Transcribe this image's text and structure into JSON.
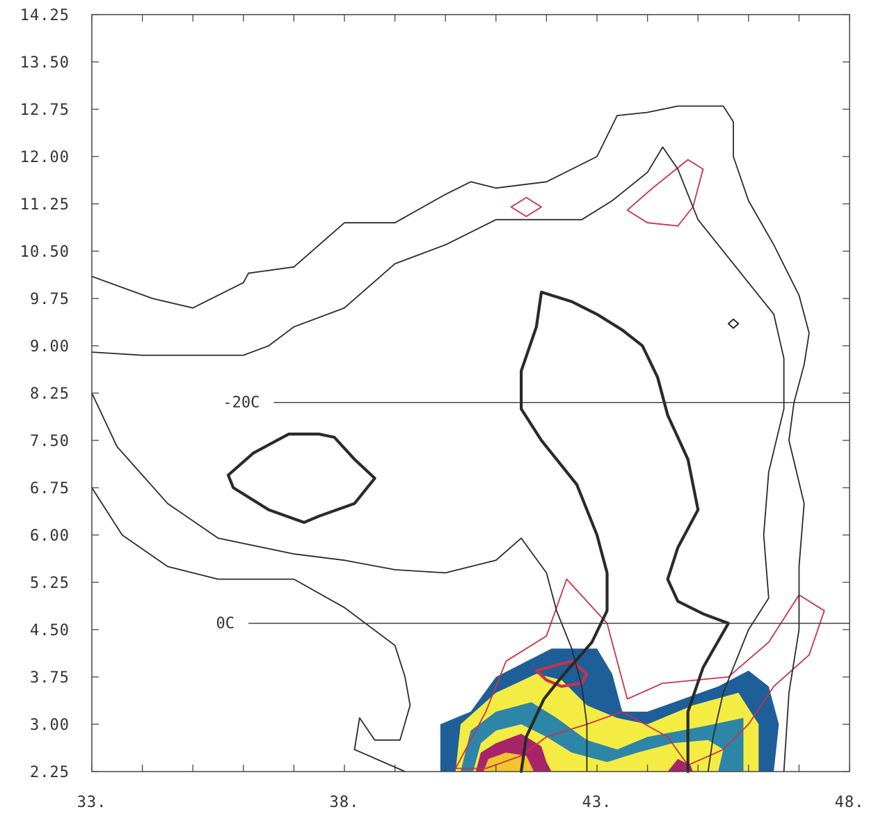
{
  "chart_data": {
    "type": "contour",
    "xlim": [
      33,
      48
    ],
    "ylim": [
      2.25,
      14.25
    ],
    "x_ticks": [
      33,
      38,
      43,
      48
    ],
    "x_tick_labels": [
      "33.",
      "38.",
      "43.",
      "48."
    ],
    "y_ticks": [
      2.25,
      3.0,
      3.75,
      4.5,
      5.25,
      6.0,
      6.75,
      7.5,
      8.25,
      9.0,
      9.75,
      10.5,
      11.25,
      12.0,
      12.75,
      13.5,
      14.25
    ],
    "y_tick_labels": [
      "2.25",
      "3.00",
      "3.75",
      "4.50",
      "5.25",
      "6.00",
      "6.75",
      "7.50",
      "8.25",
      "9.00",
      "9.75",
      "10.50",
      "11.25",
      "12.00",
      "12.75",
      "13.50",
      "14.25"
    ],
    "reference_lines": [
      {
        "label": "-20C",
        "y": 8.1,
        "x_start": 36.6,
        "x_end": 48
      },
      {
        "label": "0C",
        "y": 4.6,
        "x_start": 36.1,
        "x_end": 48
      }
    ],
    "colors": {
      "black_contour": "#2a2a2a",
      "red_contour": "#c8324a",
      "fill_dark_blue": "#1e5f99",
      "fill_teal": "#2d86a8",
      "fill_yellow": "#f4ec42",
      "fill_magenta": "#a8246a",
      "fill_gold": "#f3c52c"
    },
    "black_contours": [
      {
        "w": 1.8,
        "pts": [
          [
            33,
            10.1
          ],
          [
            34.2,
            9.75
          ],
          [
            35,
            9.6
          ],
          [
            36,
            10.0
          ],
          [
            36.1,
            10.15
          ],
          [
            37,
            10.25
          ],
          [
            38,
            10.95
          ],
          [
            39,
            10.95
          ],
          [
            40,
            11.4
          ],
          [
            40.5,
            11.6
          ],
          [
            41,
            11.5
          ],
          [
            42,
            11.6
          ],
          [
            43,
            12.0
          ],
          [
            43.4,
            12.65
          ],
          [
            44,
            12.7
          ],
          [
            44.6,
            12.8
          ],
          [
            45.5,
            12.8
          ],
          [
            45.7,
            12.55
          ],
          [
            45.7,
            12.0
          ],
          [
            46,
            11.3
          ],
          [
            46.5,
            10.6
          ],
          [
            47,
            9.8
          ],
          [
            47.2,
            9.2
          ],
          [
            47.1,
            8.7
          ],
          [
            46.9,
            8.1
          ],
          [
            46.8,
            7.5
          ],
          [
            47.1,
            6.5
          ],
          [
            47.0,
            5.5
          ],
          [
            47.0,
            4.5
          ],
          [
            46.8,
            3.5
          ],
          [
            46.7,
            2.25
          ]
        ]
      },
      {
        "w": 1.8,
        "pts": [
          [
            33,
            8.9
          ],
          [
            34,
            8.85
          ],
          [
            35,
            8.85
          ],
          [
            36,
            8.85
          ],
          [
            36.5,
            9.0
          ],
          [
            37,
            9.3
          ],
          [
            38,
            9.6
          ],
          [
            39,
            10.3
          ],
          [
            39.5,
            10.45
          ],
          [
            40,
            10.6
          ],
          [
            41,
            11.0
          ],
          [
            42,
            11.0
          ],
          [
            42.7,
            11.0
          ],
          [
            43.3,
            11.3
          ],
          [
            44,
            11.75
          ],
          [
            44.3,
            12.15
          ],
          [
            44.6,
            11.8
          ],
          [
            45.0,
            11.0
          ],
          [
            45.3,
            10.7
          ],
          [
            45.9,
            10.1
          ],
          [
            46.5,
            9.5
          ],
          [
            46.7,
            8.8
          ],
          [
            46.7,
            8.0
          ],
          [
            46.4,
            7.0
          ],
          [
            46.3,
            6.0
          ],
          [
            46.4,
            5.0
          ],
          [
            46.0,
            4.5
          ],
          [
            45.5,
            3.5
          ],
          [
            45.3,
            2.8
          ],
          [
            45.2,
            2.25
          ]
        ]
      },
      {
        "w": 1.8,
        "pts": [
          [
            33,
            8.25
          ],
          [
            33.5,
            7.4
          ],
          [
            34.5,
            6.5
          ],
          [
            35.5,
            5.95
          ],
          [
            37,
            5.7
          ],
          [
            38,
            5.6
          ],
          [
            39,
            5.45
          ],
          [
            40,
            5.4
          ],
          [
            41.0,
            5.6
          ],
          [
            41.5,
            5.95
          ],
          [
            42,
            5.4
          ],
          [
            42.2,
            4.8
          ],
          [
            42.5,
            4.2
          ],
          [
            42.7,
            3.6
          ],
          [
            42.8,
            3.0
          ],
          [
            42.8,
            2.25
          ]
        ]
      },
      {
        "w": 1.8,
        "pts": [
          [
            33,
            6.75
          ],
          [
            33.6,
            6.0
          ],
          [
            34.5,
            5.5
          ],
          [
            35.5,
            5.3
          ],
          [
            37,
            5.3
          ],
          [
            38,
            4.85
          ],
          [
            39,
            4.25
          ],
          [
            39.2,
            3.75
          ],
          [
            39.3,
            3.3
          ],
          [
            39.1,
            2.75
          ],
          [
            38.6,
            2.75
          ],
          [
            38.3,
            3.1
          ],
          [
            38.2,
            2.6
          ],
          [
            39.2,
            2.25
          ]
        ]
      },
      {
        "w": 4.2,
        "pts": [
          [
            41.5,
            2.25
          ],
          [
            41.6,
            2.8
          ],
          [
            41.95,
            3.4
          ],
          [
            42.3,
            3.75
          ],
          [
            42.9,
            4.3
          ],
          [
            43.2,
            4.8
          ],
          [
            43.2,
            5.4
          ],
          [
            43.0,
            6.0
          ],
          [
            42.6,
            6.8
          ],
          [
            41.9,
            7.5
          ],
          [
            41.5,
            8.0
          ],
          [
            41.5,
            8.6
          ],
          [
            41.8,
            9.3
          ],
          [
            41.9,
            9.85
          ],
          [
            42.5,
            9.7
          ],
          [
            43,
            9.5
          ],
          [
            43.5,
            9.25
          ],
          [
            43.9,
            9.0
          ],
          [
            44.2,
            8.5
          ],
          [
            44.4,
            7.9
          ],
          [
            44.8,
            7.2
          ],
          [
            45.0,
            6.4
          ],
          [
            44.6,
            5.8
          ],
          [
            44.4,
            5.3
          ],
          [
            44.6,
            4.95
          ],
          [
            45.1,
            4.75
          ],
          [
            45.6,
            4.6
          ],
          [
            45.1,
            3.9
          ],
          [
            44.8,
            3.2
          ],
          [
            44.8,
            2.25
          ]
        ]
      },
      {
        "w": 4.2,
        "pts": [
          [
            35.7,
            6.95
          ],
          [
            36.2,
            7.3
          ],
          [
            36.9,
            7.6
          ],
          [
            37.5,
            7.6
          ],
          [
            37.8,
            7.55
          ],
          [
            38.2,
            7.2
          ],
          [
            38.6,
            6.9
          ],
          [
            38.2,
            6.5
          ],
          [
            37.5,
            6.3
          ],
          [
            37.2,
            6.2
          ],
          [
            36.5,
            6.4
          ],
          [
            35.8,
            6.75
          ],
          [
            35.7,
            6.95
          ]
        ],
        "closed": true
      },
      {
        "w": 2.0,
        "pts": [
          [
            45.6,
            9.35
          ],
          [
            45.7,
            9.42
          ],
          [
            45.8,
            9.35
          ],
          [
            45.7,
            9.28
          ]
        ],
        "closed": true
      }
    ],
    "red_contours": [
      {
        "w": 1.8,
        "pts": [
          [
            41.3,
            11.2
          ],
          [
            41.6,
            11.35
          ],
          [
            41.9,
            11.2
          ],
          [
            41.6,
            11.05
          ]
        ],
        "closed": true
      },
      {
        "w": 1.8,
        "pts": [
          [
            43.6,
            11.15
          ],
          [
            44.1,
            11.5
          ],
          [
            44.8,
            11.95
          ],
          [
            45.1,
            11.8
          ],
          [
            44.9,
            11.2
          ],
          [
            44.6,
            10.9
          ],
          [
            44.0,
            10.95
          ],
          [
            43.6,
            11.15
          ]
        ],
        "closed": true
      },
      {
        "w": 1.8,
        "pts": [
          [
            40.2,
            2.3
          ],
          [
            40.8,
            3.2
          ],
          [
            41.2,
            4.0
          ],
          [
            42.0,
            4.4
          ],
          [
            42.4,
            5.3
          ],
          [
            43.2,
            4.6
          ],
          [
            43.4,
            4.0
          ],
          [
            43.6,
            3.4
          ],
          [
            44.3,
            3.65
          ],
          [
            45.6,
            3.75
          ],
          [
            46.4,
            4.3
          ],
          [
            47.0,
            5.05
          ],
          [
            47.5,
            4.8
          ],
          [
            47.2,
            4.1
          ],
          [
            46.5,
            3.6
          ],
          [
            46.0,
            3.0
          ],
          [
            45.5,
            2.6
          ],
          [
            44.8,
            2.35
          ],
          [
            44.4,
            2.8
          ],
          [
            43.5,
            3.2
          ],
          [
            42.8,
            3.0
          ],
          [
            42.0,
            2.8
          ],
          [
            41.5,
            2.5
          ],
          [
            40.8,
            2.3
          ],
          [
            40.2,
            2.3
          ]
        ],
        "closed": true
      },
      {
        "w": 4.2,
        "pts": [
          [
            41.8,
            3.85
          ],
          [
            42.5,
            4.0
          ],
          [
            42.8,
            3.8
          ],
          [
            42.7,
            3.65
          ],
          [
            42.3,
            3.6
          ],
          [
            42.0,
            3.7
          ],
          [
            41.8,
            3.85
          ]
        ],
        "closed": true
      }
    ],
    "filled_regions": [
      {
        "fill": "fill_dark_blue",
        "pts": [
          [
            39.9,
            2.25
          ],
          [
            39.9,
            3.0
          ],
          [
            40.5,
            3.2
          ],
          [
            41.0,
            3.75
          ],
          [
            42.1,
            4.2
          ],
          [
            43,
            4.2
          ],
          [
            43.3,
            3.8
          ],
          [
            43.5,
            3.2
          ],
          [
            44.0,
            3.2
          ],
          [
            45.4,
            3.6
          ],
          [
            46.0,
            3.85
          ],
          [
            46.4,
            3.6
          ],
          [
            46.6,
            3.0
          ],
          [
            46.5,
            2.25
          ]
        ]
      },
      {
        "fill": "fill_yellow",
        "pts": [
          [
            40.2,
            2.25
          ],
          [
            40.3,
            3.0
          ],
          [
            41.0,
            3.5
          ],
          [
            41.8,
            3.8
          ],
          [
            42.3,
            3.7
          ],
          [
            42.8,
            3.3
          ],
          [
            43.4,
            3.1
          ],
          [
            44.0,
            3.0
          ],
          [
            44.9,
            3.3
          ],
          [
            45.8,
            3.5
          ],
          [
            46.2,
            3.0
          ],
          [
            46.2,
            2.25
          ]
        ]
      },
      {
        "fill": "fill_teal",
        "pts": [
          [
            40.3,
            2.25
          ],
          [
            40.5,
            2.9
          ],
          [
            41.0,
            3.2
          ],
          [
            41.7,
            3.35
          ],
          [
            42.2,
            3.1
          ],
          [
            42.8,
            2.75
          ],
          [
            43.4,
            2.6
          ],
          [
            44.0,
            2.8
          ],
          [
            45.0,
            2.95
          ],
          [
            45.9,
            3.1
          ],
          [
            45.9,
            2.25
          ]
        ]
      },
      {
        "fill": "fill_yellow",
        "pts": [
          [
            40.55,
            2.25
          ],
          [
            40.7,
            2.7
          ],
          [
            41.0,
            2.9
          ],
          [
            41.5,
            3.0
          ],
          [
            42.0,
            2.8
          ],
          [
            42.5,
            2.55
          ],
          [
            43.2,
            2.4
          ],
          [
            43.8,
            2.55
          ],
          [
            44.5,
            2.7
          ],
          [
            45.2,
            2.75
          ],
          [
            45.5,
            2.6
          ],
          [
            45.4,
            2.25
          ]
        ]
      },
      {
        "fill": "fill_magenta",
        "pts": [
          [
            40.6,
            2.25
          ],
          [
            40.7,
            2.55
          ],
          [
            41.0,
            2.7
          ],
          [
            41.5,
            2.85
          ],
          [
            41.9,
            2.65
          ],
          [
            42.0,
            2.4
          ],
          [
            42.1,
            2.25
          ]
        ]
      },
      {
        "fill": "fill_gold",
        "pts": [
          [
            40.75,
            2.25
          ],
          [
            40.85,
            2.45
          ],
          [
            41.2,
            2.55
          ],
          [
            41.6,
            2.5
          ],
          [
            41.75,
            2.25
          ]
        ]
      },
      {
        "fill": "fill_magenta",
        "pts": [
          [
            44.4,
            2.25
          ],
          [
            44.6,
            2.45
          ],
          [
            44.85,
            2.35
          ],
          [
            44.9,
            2.25
          ]
        ]
      }
    ]
  }
}
